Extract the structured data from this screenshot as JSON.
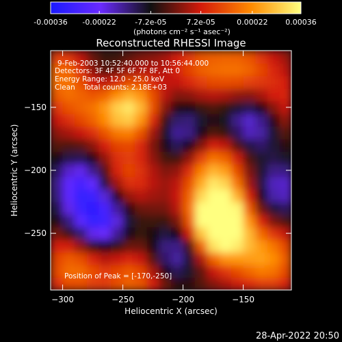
{
  "chart_data": {
    "type": "heatmap",
    "title": "Reconstructed RHESSI Image",
    "colorbar": {
      "tick_labels": [
        "-0.00036",
        "-0.00022",
        "-7.2e-05",
        "7.2e-05",
        "0.00022",
        "0.00036"
      ],
      "tick_values": [
        -0.00036,
        -0.00022,
        -7.2e-05,
        7.2e-05,
        0.00022,
        0.00036
      ],
      "range": [
        -0.00036,
        0.00036
      ],
      "unit_label": "(photons cm⁻² s⁻¹ asec⁻²)",
      "colors": [
        "#1a1aff",
        "#6a2aff",
        "#101010",
        "#d41a0a",
        "#ff8a00",
        "#ffff80"
      ]
    },
    "xlabel": "Heliocentric X (arcsec)",
    "ylabel": "Heliocentric Y (arcsec)",
    "xlim": [
      -310,
      -110
    ],
    "ylim": [
      -295,
      -105
    ],
    "x_ticks": [
      -300,
      -250,
      -200,
      -150
    ],
    "x_tick_labels": [
      "−300",
      "−250",
      "−200",
      "−150"
    ],
    "y_ticks": [
      -150,
      -200,
      -250
    ],
    "y_tick_labels": [
      "−150",
      "−200",
      "−250"
    ],
    "annotations": {
      "line1": "9-Feb-2003 10:52:40.000 to 10:56:44.000",
      "line2": "Detectors: 3F 4F 5F 6F 7F 8F, Att 0",
      "line3": "Energy Range: 12.0 - 25.0 keV",
      "line4_left": "Clean",
      "line4_right": "Total counts: 2.18E+03",
      "peak": "Position of Peak = [-170,-250]"
    },
    "peak": [
      -170,
      -250
    ],
    "sources": [
      {
        "x": -170,
        "y": -250,
        "value": 0.00036
      },
      {
        "x": -245,
        "y": -150,
        "value": 0.00034
      },
      {
        "x": -170,
        "y": -230,
        "value": 0.0003
      },
      {
        "x": -175,
        "y": -195,
        "value": 0.00022
      },
      {
        "x": -300,
        "y": -125,
        "value": 0.00018
      },
      {
        "x": -290,
        "y": -275,
        "value": 0.0002
      },
      {
        "x": -250,
        "y": -205,
        "value": 0.00016
      },
      {
        "x": -130,
        "y": -270,
        "value": 0.00022
      },
      {
        "x": -240,
        "y": -285,
        "value": 0.00018
      },
      {
        "x": -125,
        "y": -150,
        "value": 0.00018
      },
      {
        "x": -150,
        "y": -120,
        "value": 0.00016
      },
      {
        "x": -185,
        "y": -118,
        "value": 0.00014
      },
      {
        "x": -280,
        "y": -150,
        "value": 0.00012
      },
      {
        "x": -200,
        "y": -170,
        "value": -0.0002
      },
      {
        "x": -270,
        "y": -240,
        "value": -0.0003
      },
      {
        "x": -285,
        "y": -210,
        "value": -0.00025
      },
      {
        "x": -140,
        "y": -160,
        "value": -0.0003
      },
      {
        "x": -120,
        "y": -215,
        "value": -0.0002
      },
      {
        "x": -205,
        "y": -265,
        "value": -0.00022
      },
      {
        "x": -265,
        "y": -125,
        "value": -0.00012
      }
    ]
  },
  "footer": {
    "timestamp": "28-Apr-2022 20:50"
  }
}
